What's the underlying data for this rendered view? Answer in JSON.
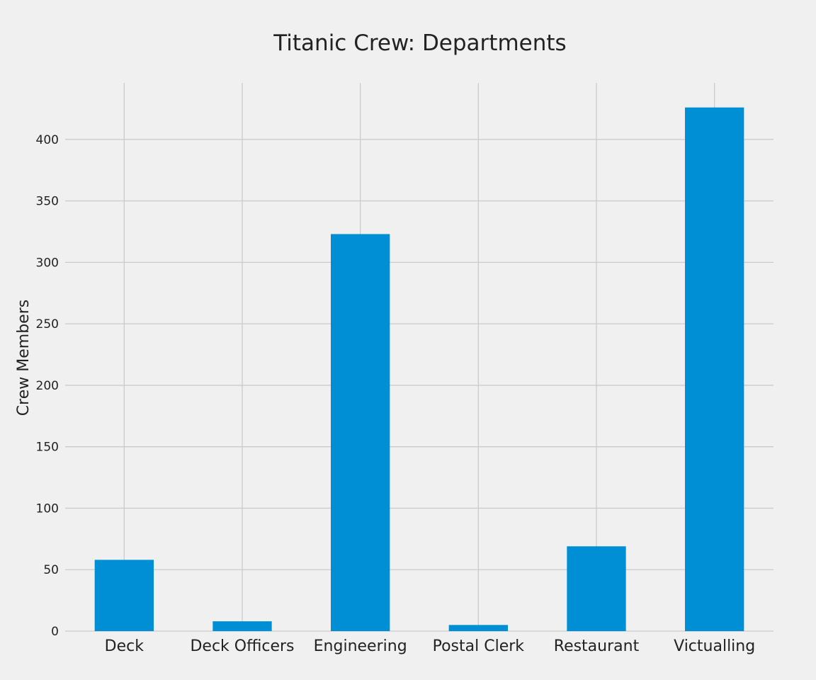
{
  "chart_data": {
    "type": "bar",
    "title": "Titanic Crew: Departments",
    "xlabel": "",
    "ylabel": "Crew Members",
    "categories": [
      "Deck",
      "Deck Officers",
      "Engineering",
      "Postal Clerk",
      "Restaurant",
      "Victualling"
    ],
    "values": [
      58,
      8,
      323,
      5,
      69,
      426
    ],
    "ylim": [
      0,
      446
    ],
    "yticks": [
      0,
      50,
      100,
      150,
      200,
      250,
      300,
      350,
      400
    ],
    "ytick_labels": [
      "0",
      "50",
      "100",
      "150",
      "200",
      "250",
      "300",
      "350",
      "400"
    ],
    "grid": true,
    "bar_color": "#008fd5",
    "grid_color": "#cbcbcb",
    "background": "#f0f0f0"
  }
}
